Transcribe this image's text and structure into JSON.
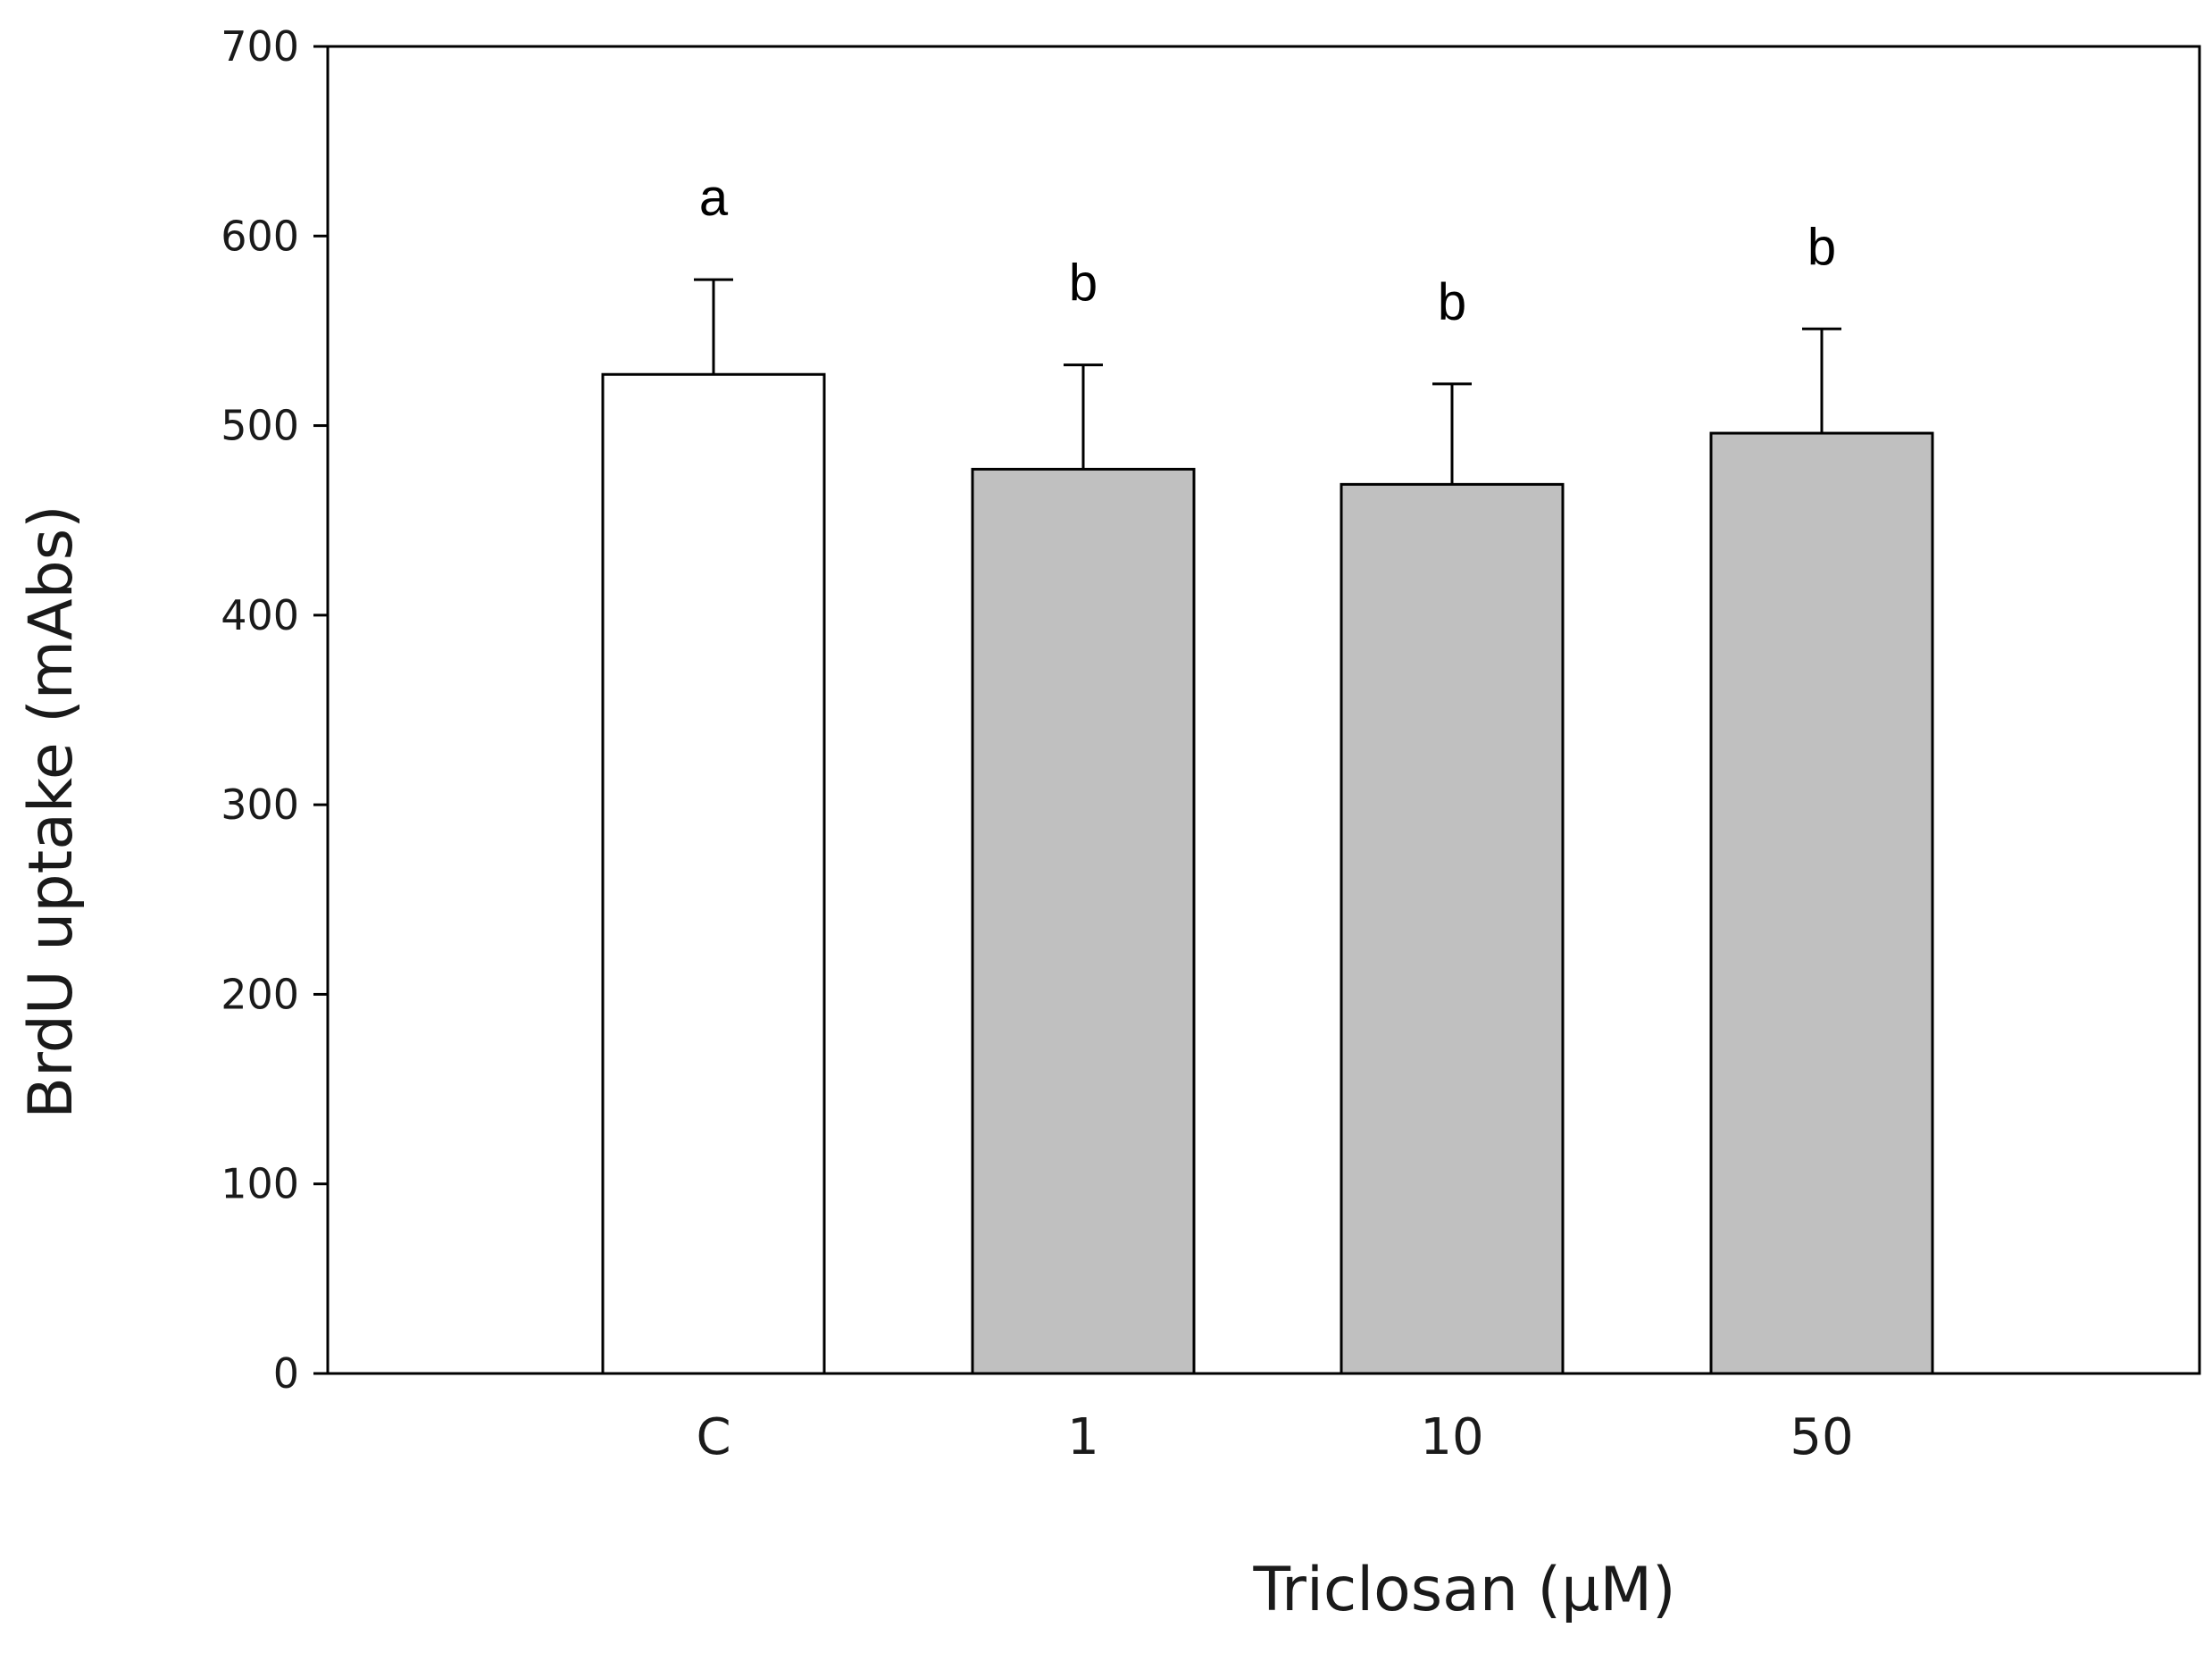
{
  "chart_data": {
    "type": "bar",
    "title": "",
    "xlabel": "Triclosan (μM)",
    "ylabel": "BrdU uptake (mAbs)",
    "ylim": [
      0,
      700
    ],
    "yticks": [
      0,
      100,
      200,
      300,
      400,
      500,
      600,
      700
    ],
    "ytick_labels": [
      "0",
      "100",
      "200",
      "300",
      "400",
      "500",
      "600",
      "700"
    ],
    "categories": [
      "C",
      "1",
      "10",
      "50"
    ],
    "values": [
      527,
      477,
      469,
      496
    ],
    "errors": [
      50,
      55,
      53,
      55
    ],
    "significance": [
      "a",
      "b",
      "b",
      "b"
    ],
    "bar_colors": [
      "#ffffff",
      "#c0c0c0",
      "#c0c0c0",
      "#c0c0c0"
    ],
    "grid": false,
    "legend": "none"
  }
}
